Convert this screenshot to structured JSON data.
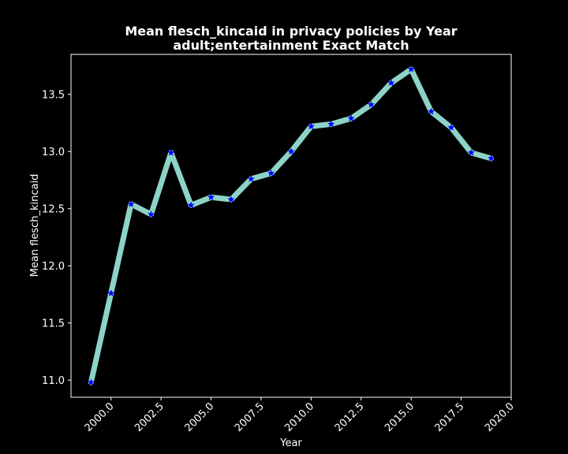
{
  "chart_data": {
    "type": "line",
    "title": "Mean flesch_kincaid in privacy policies by Year",
    "subtitle": "adult;entertainment Exact Match",
    "xlabel": "Year",
    "ylabel": "Mean flesch_kincaid",
    "xlim": [
      1998,
      2020
    ],
    "ylim": [
      10.85,
      13.85
    ],
    "x_ticks": [
      "2000.0",
      "2002.5",
      "2005.0",
      "2007.5",
      "2010.0",
      "2012.5",
      "2015.0",
      "2017.5",
      "2020.0"
    ],
    "y_ticks": [
      "11.0",
      "11.5",
      "12.0",
      "12.5",
      "13.0",
      "13.5"
    ],
    "grid": false,
    "line_color": "#8dd3c7",
    "marker_color": "#0000ff",
    "marker": "star",
    "background": "#000000",
    "series": [
      {
        "x": [
          1999,
          2000,
          2001,
          2002,
          2003,
          2004,
          2005,
          2006,
          2007,
          2008,
          2009,
          2010,
          2011,
          2012,
          2013,
          2014,
          2015,
          2016,
          2017,
          2018,
          2019
        ],
        "values": [
          10.98,
          11.76,
          12.54,
          12.45,
          12.99,
          12.53,
          12.6,
          12.58,
          12.76,
          12.81,
          13.0,
          13.22,
          13.24,
          13.29,
          13.41,
          13.6,
          13.72,
          13.35,
          13.21,
          12.99,
          12.94
        ]
      }
    ]
  }
}
